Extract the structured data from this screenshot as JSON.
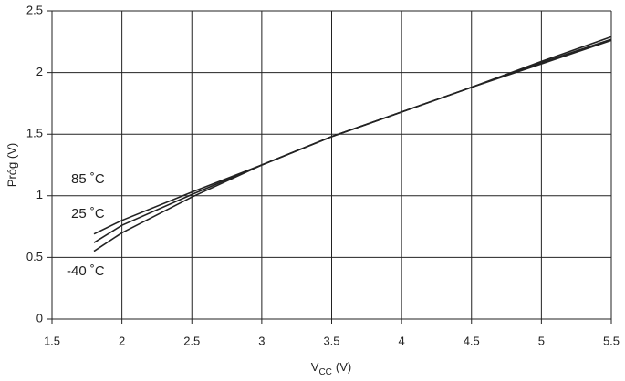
{
  "chart_data": {
    "type": "line",
    "x": [
      1.8,
      2,
      2.5,
      3,
      3.5,
      4,
      4.5,
      5,
      5.5
    ],
    "series": [
      {
        "name": "85 ˚C",
        "color": "#222222",
        "values": [
          0.69,
          0.8,
          1.03,
          1.25,
          1.48,
          1.68,
          1.88,
          2.07,
          2.26
        ]
      },
      {
        "name": "25 ˚C",
        "color": "#222222",
        "values": [
          0.62,
          0.76,
          1.01,
          1.25,
          1.48,
          1.68,
          1.88,
          2.08,
          2.27
        ]
      },
      {
        "name": "-40 ˚C",
        "color": "#222222",
        "values": [
          0.55,
          0.7,
          0.99,
          1.25,
          1.48,
          1.68,
          1.88,
          2.09,
          2.29
        ]
      }
    ],
    "xlim": [
      1.5,
      5.5
    ],
    "xticks": [
      1.5,
      2,
      2.5,
      3,
      3.5,
      4,
      4.5,
      5,
      5.5
    ],
    "ylim": [
      0,
      2.5
    ],
    "yticks": [
      0,
      0.5,
      1,
      1.5,
      2,
      2.5
    ],
    "grid": true,
    "ylabel": "Próg (V)",
    "xlabel": {
      "main": "V",
      "sub": "CC",
      "unit": "(V)"
    }
  }
}
